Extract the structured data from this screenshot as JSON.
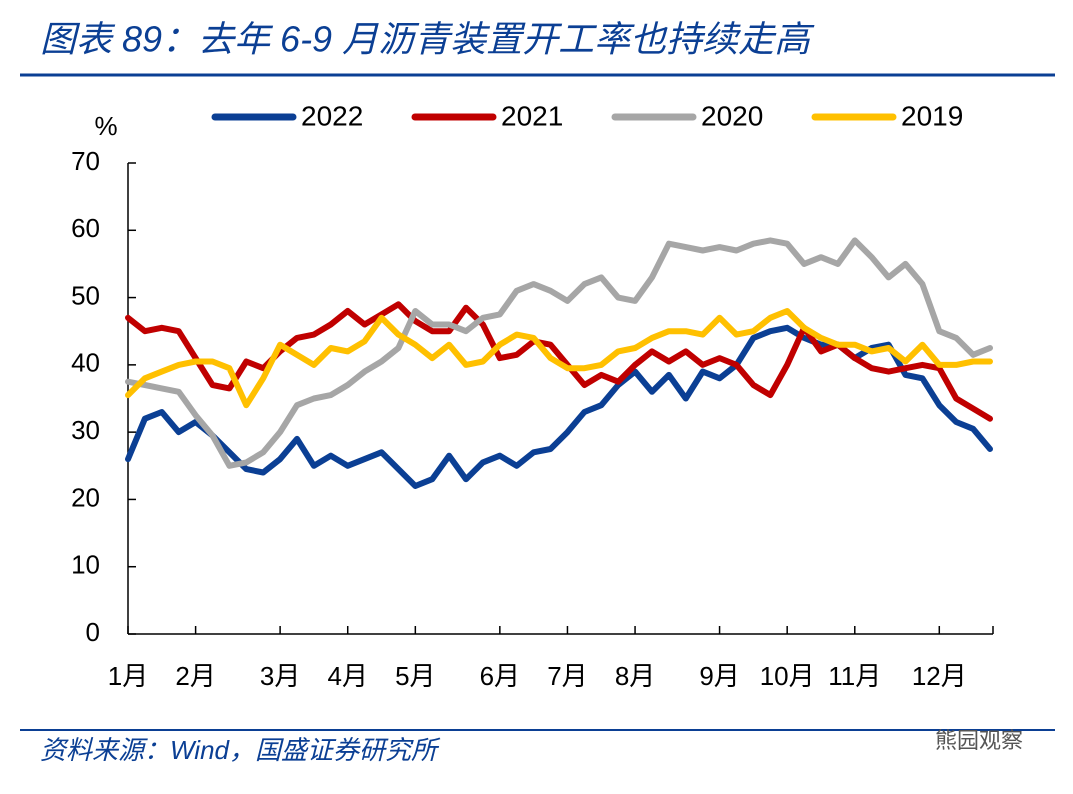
{
  "chart_data": {
    "type": "line",
    "title": "图表 89：去年 6-9 月沥青装置开工率也持续走高",
    "y_label": "%",
    "source": "资料来源：Wind，国盛证券研究所",
    "watermark": "熊园观察",
    "categories": [
      "1月",
      null,
      null,
      null,
      "2月",
      null,
      null,
      null,
      null,
      "3月",
      null,
      null,
      null,
      "4月",
      null,
      null,
      null,
      "5月",
      null,
      null,
      null,
      null,
      "6月",
      null,
      null,
      null,
      "7月",
      null,
      null,
      null,
      "8月",
      null,
      null,
      null,
      null,
      "9月",
      null,
      null,
      null,
      "10月",
      null,
      null,
      null,
      "11月",
      null,
      null,
      null,
      null,
      "12月",
      null,
      null,
      null
    ],
    "ylim": [
      0,
      70
    ],
    "yticks": [
      0,
      10,
      20,
      30,
      40,
      50,
      60,
      70
    ],
    "legend": "top",
    "series": [
      {
        "name": "2022",
        "color": "#0b3f94",
        "values": [
          26,
          32,
          33,
          30,
          31.5,
          29.5,
          27,
          24.5,
          24,
          26,
          29,
          25,
          26.5,
          25,
          26,
          27,
          24.5,
          22,
          23,
          26.5,
          23,
          25.5,
          26.5,
          25,
          27,
          27.5,
          30,
          33,
          34,
          37,
          39,
          36,
          38.5,
          35,
          39,
          38,
          40,
          44,
          45,
          45.5,
          44,
          43,
          43,
          41,
          42.5,
          43,
          38.5,
          38,
          34,
          31.5,
          30.5,
          27.5
        ]
      },
      {
        "name": "2021",
        "color": "#c00000",
        "values": [
          47,
          45,
          45.5,
          45,
          41,
          37,
          36.5,
          40.5,
          39.5,
          42,
          44,
          44.5,
          46,
          48,
          46,
          47.5,
          49,
          46.5,
          45,
          45,
          48.5,
          46,
          41,
          41.5,
          43.5,
          43,
          40,
          37,
          38.5,
          37.5,
          40,
          42,
          40.5,
          42,
          40,
          41,
          40,
          37,
          35.5,
          40,
          45.5,
          42,
          43,
          41,
          39.5,
          39,
          39.5,
          40,
          39.5,
          35,
          33.5,
          32
        ]
      },
      {
        "name": "2020",
        "color": "#a6a6a6",
        "values": [
          37.5,
          37,
          36.5,
          36,
          32.5,
          29.5,
          25,
          25.5,
          27,
          30,
          34,
          35,
          35.5,
          37,
          39,
          40.5,
          42.5,
          48,
          46,
          46,
          45,
          47,
          47.5,
          51,
          52,
          51,
          49.5,
          52,
          53,
          50,
          49.5,
          53,
          58,
          57.5,
          57,
          57.5,
          57,
          58,
          58.5,
          58,
          55,
          56,
          55,
          58.5,
          56,
          53,
          55,
          52,
          45,
          44,
          41.5,
          42.5
        ]
      },
      {
        "name": "2019",
        "color": "#ffc000",
        "values": [
          35.5,
          38,
          39,
          40,
          40.5,
          40.5,
          39.5,
          34,
          38,
          43,
          41.5,
          40,
          42.5,
          42,
          43.5,
          47,
          44.5,
          43,
          41,
          43,
          40,
          40.5,
          43,
          44.5,
          44,
          41,
          39.5,
          39.5,
          40,
          42,
          42.5,
          44,
          45,
          45,
          44.5,
          47,
          44.5,
          45,
          47,
          48,
          45.5,
          44,
          43,
          43,
          42,
          42.5,
          40.5,
          43,
          40,
          40,
          40.5,
          40.5
        ]
      }
    ]
  }
}
